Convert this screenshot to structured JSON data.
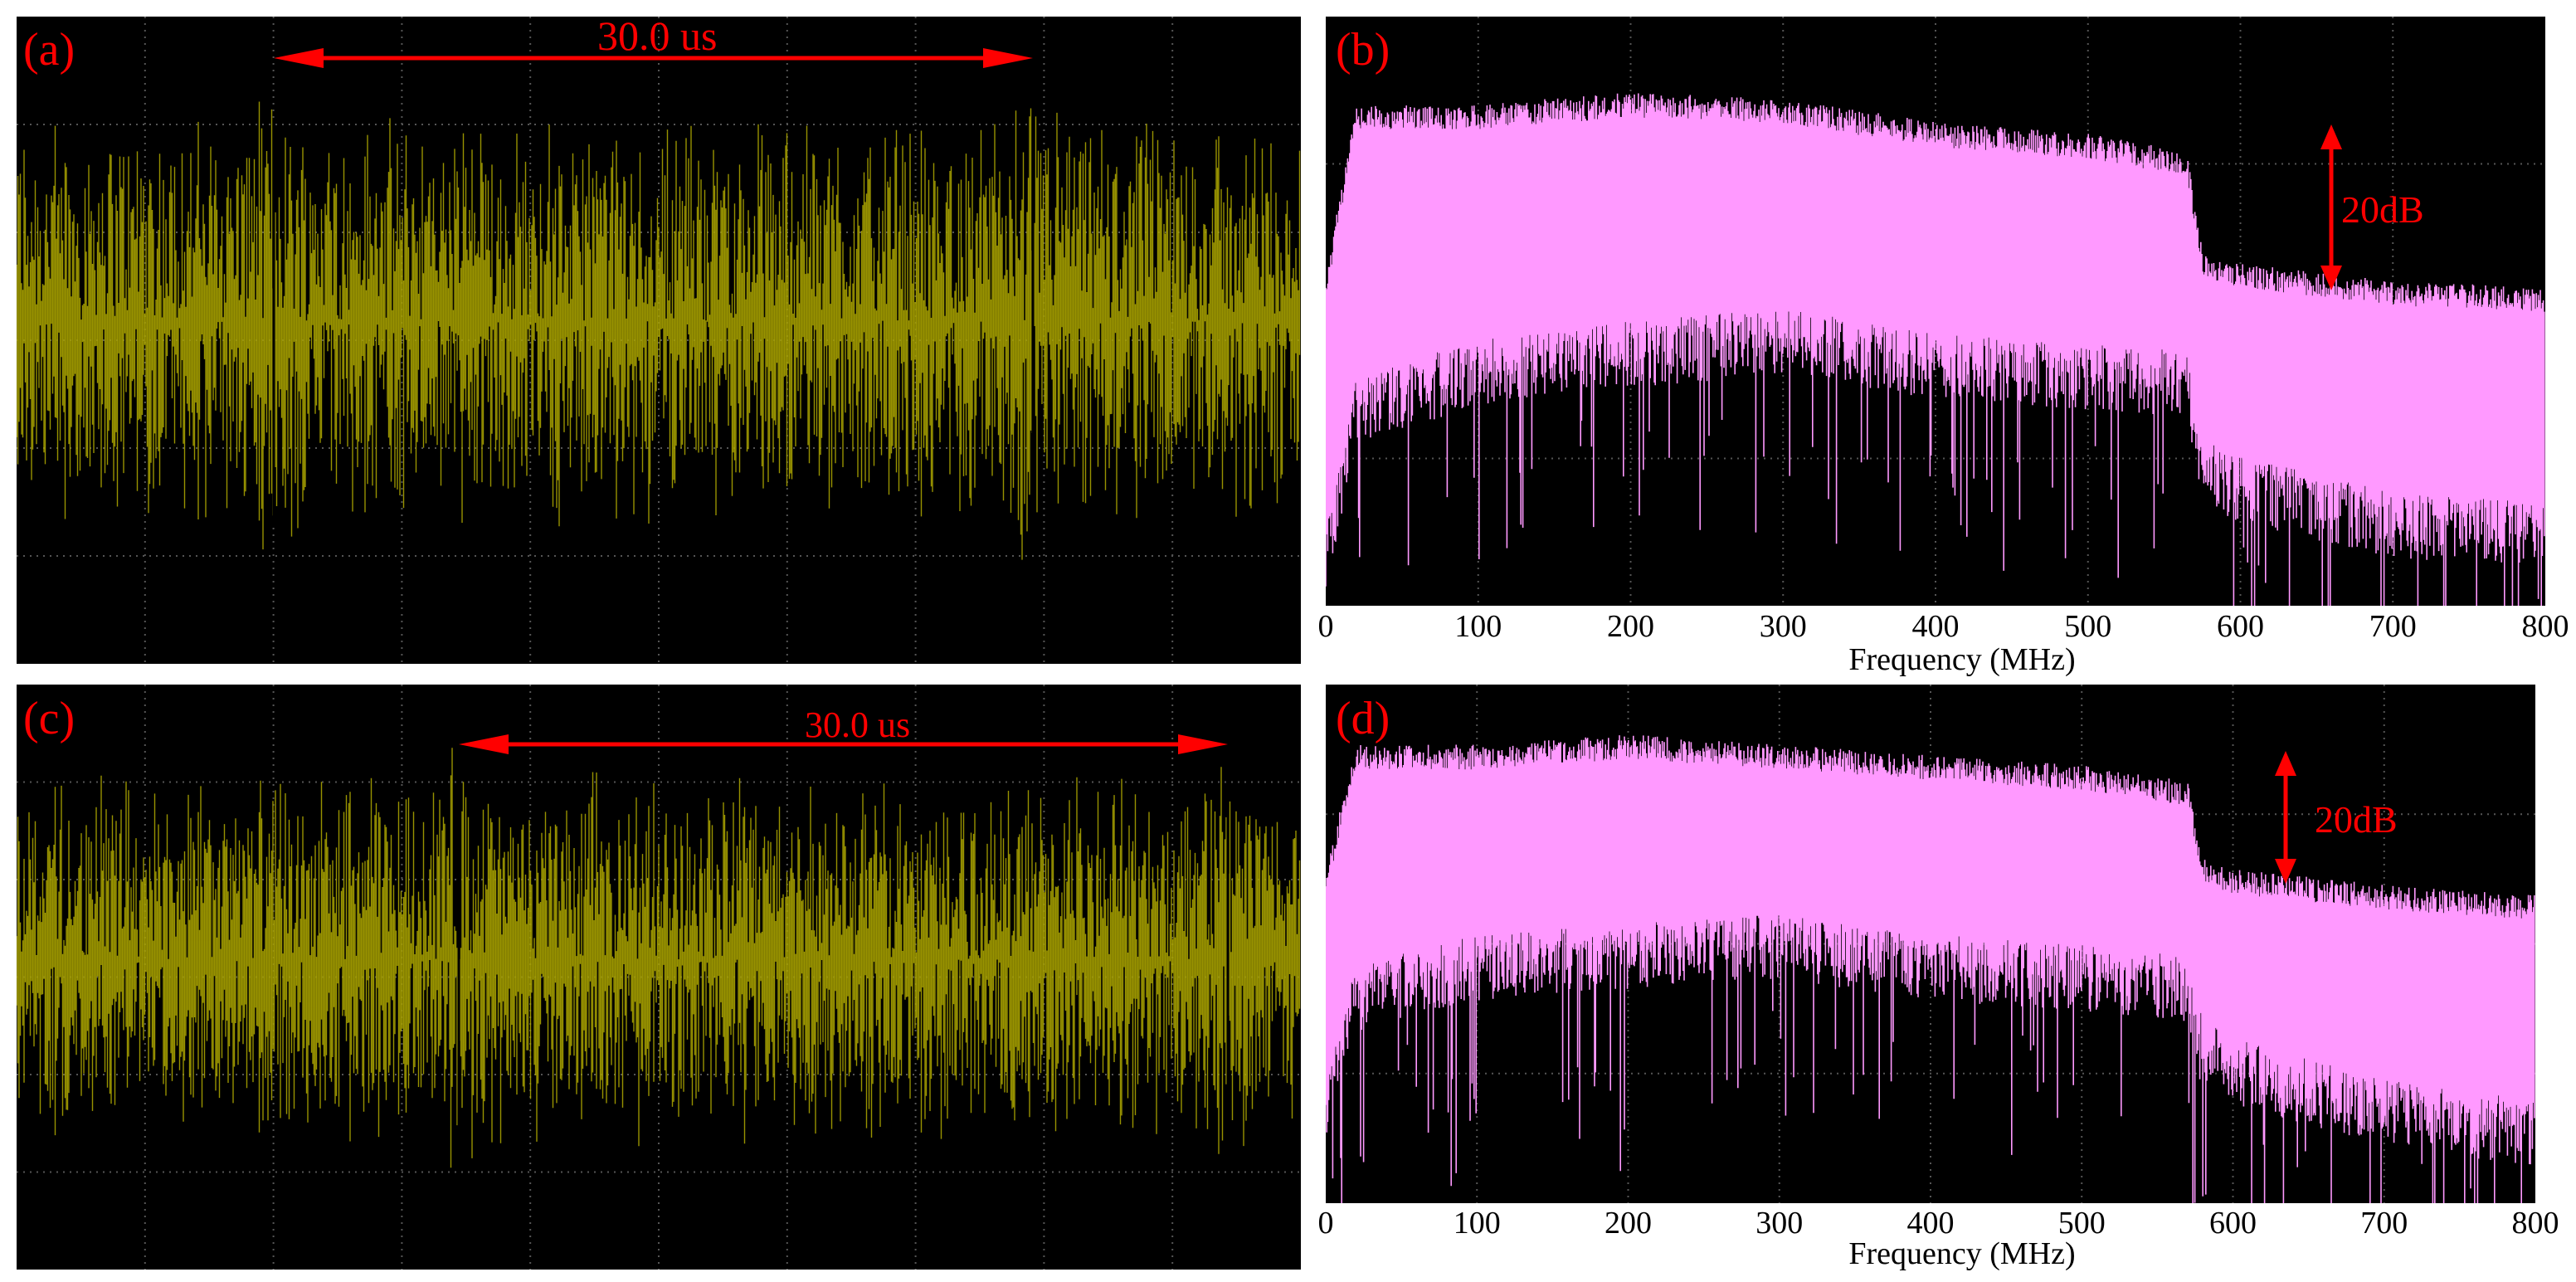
{
  "colors": {
    "time_trace": "#a8a200",
    "spectrum_fill": "#ff99ff",
    "annotation": "#ff0000",
    "screen": "#000000",
    "grid": "#555555"
  },
  "panels": {
    "a": {
      "label": "(a)",
      "period_label": "30.0 us"
    },
    "b": {
      "label": "(b)",
      "range_label": "20dB"
    },
    "c": {
      "label": "(c)",
      "period_label": "30.0 us"
    },
    "d": {
      "label": "(d)",
      "range_label": "20dB"
    }
  },
  "chart_data": [
    {
      "panel": "a",
      "type": "area",
      "title": "",
      "xlabel": "",
      "ylabel": "",
      "grid": true,
      "annotations": [
        {
          "text": "30.0 us",
          "kind": "double-arrow"
        }
      ],
      "description_values": {
        "period_us": 30.0
      }
    },
    {
      "panel": "b",
      "type": "area",
      "title": "",
      "xlabel": "Frequency (MHz)",
      "ylabel": "",
      "xlim": [
        0,
        800
      ],
      "xticks": [
        0,
        100,
        200,
        300,
        400,
        500,
        600,
        700,
        800
      ],
      "grid": true,
      "annotations": [
        {
          "text": "20dB",
          "kind": "double-arrow"
        }
      ],
      "series": [
        {
          "x": [
            0,
            20,
            100,
            200,
            300,
            400,
            500,
            565,
            575,
            600,
            700,
            800
          ],
          "upper_db": [
            0.54,
            0.83,
            0.83,
            0.85,
            0.84,
            0.8,
            0.78,
            0.75,
            0.58,
            0.56,
            0.53,
            0.52
          ],
          "lower_db": [
            0.1,
            0.35,
            0.42,
            0.45,
            0.47,
            0.43,
            0.41,
            0.4,
            0.25,
            0.22,
            0.16,
            0.14
          ]
        }
      ]
    },
    {
      "panel": "c",
      "type": "area",
      "title": "",
      "xlabel": "",
      "ylabel": "",
      "grid": true,
      "annotations": [
        {
          "text": "30.0 us",
          "kind": "double-arrow"
        }
      ],
      "description_values": {
        "period_us": 30.0
      }
    },
    {
      "panel": "d",
      "type": "area",
      "title": "",
      "xlabel": "Frequency (MHz)",
      "ylabel": "",
      "xlim": [
        0,
        800
      ],
      "xticks": [
        0,
        100,
        200,
        300,
        400,
        500,
        600,
        700,
        800
      ],
      "grid": true,
      "annotations": [
        {
          "text": "20dB",
          "kind": "double-arrow"
        }
      ],
      "series": [
        {
          "x": [
            0,
            20,
            100,
            200,
            300,
            400,
            500,
            570,
            580,
            600,
            700,
            800
          ],
          "upper_db": [
            0.62,
            0.86,
            0.86,
            0.88,
            0.86,
            0.84,
            0.82,
            0.79,
            0.64,
            0.62,
            0.59,
            0.57
          ],
          "lower_db": [
            0.2,
            0.42,
            0.48,
            0.5,
            0.52,
            0.48,
            0.46,
            0.44,
            0.32,
            0.28,
            0.2,
            0.16
          ]
        }
      ]
    }
  ]
}
